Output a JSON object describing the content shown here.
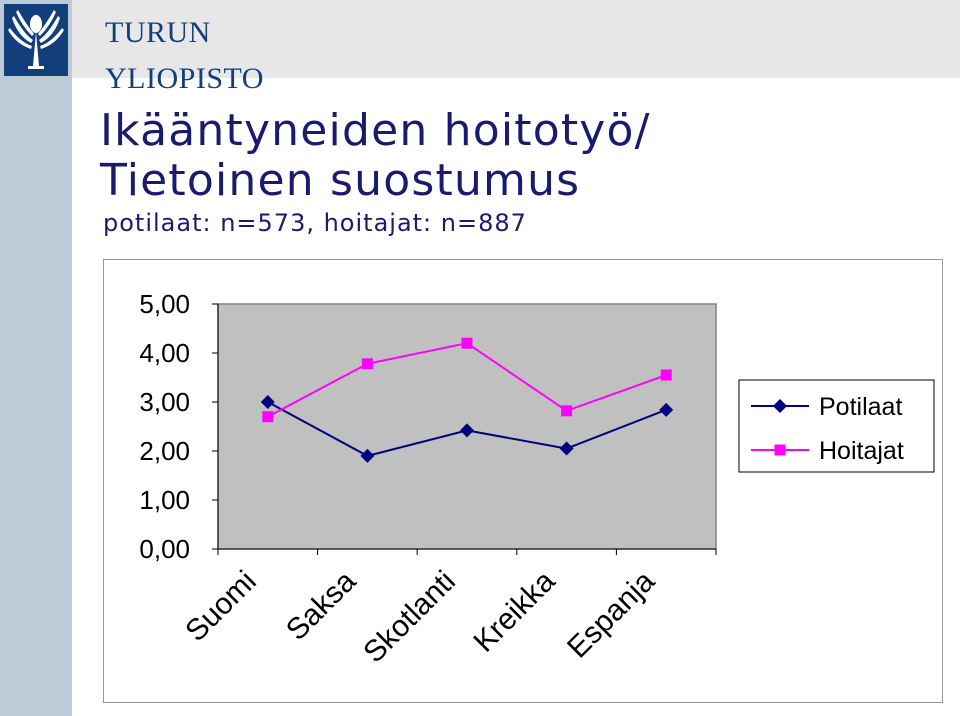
{
  "header": {
    "university_line1": "TURUN",
    "university_line2": "YLIOPISTO",
    "logo": "university-logo-emblem"
  },
  "slide": {
    "title_line1": "Ikääntyneiden hoitotyö/",
    "title_line2": "Tietoinen suostumus",
    "subtitle": "potilaat: n=573, hoitajat: n=887"
  },
  "colors": {
    "brand_blue": "#123f7c",
    "plot_area": "#c0c0c0",
    "potilaat": "#000080",
    "hoitajat": "#ff00ff"
  },
  "chart_data": {
    "type": "line",
    "categories": [
      "Suomi",
      "Saksa",
      "Skotlanti",
      "Kreikka",
      "Espanja"
    ],
    "series": [
      {
        "name": "Potilaat",
        "values": [
          3.0,
          1.9,
          2.42,
          2.05,
          2.84
        ],
        "marker": "diamond"
      },
      {
        "name": "Hoitajat",
        "values": [
          2.7,
          3.78,
          4.2,
          2.82,
          3.55
        ],
        "marker": "square"
      }
    ],
    "yticks": [
      "0,00",
      "1,00",
      "2,00",
      "3,00",
      "4,00",
      "5,00"
    ],
    "ylim": [
      0,
      5
    ],
    "legend": "right",
    "grid": false
  }
}
